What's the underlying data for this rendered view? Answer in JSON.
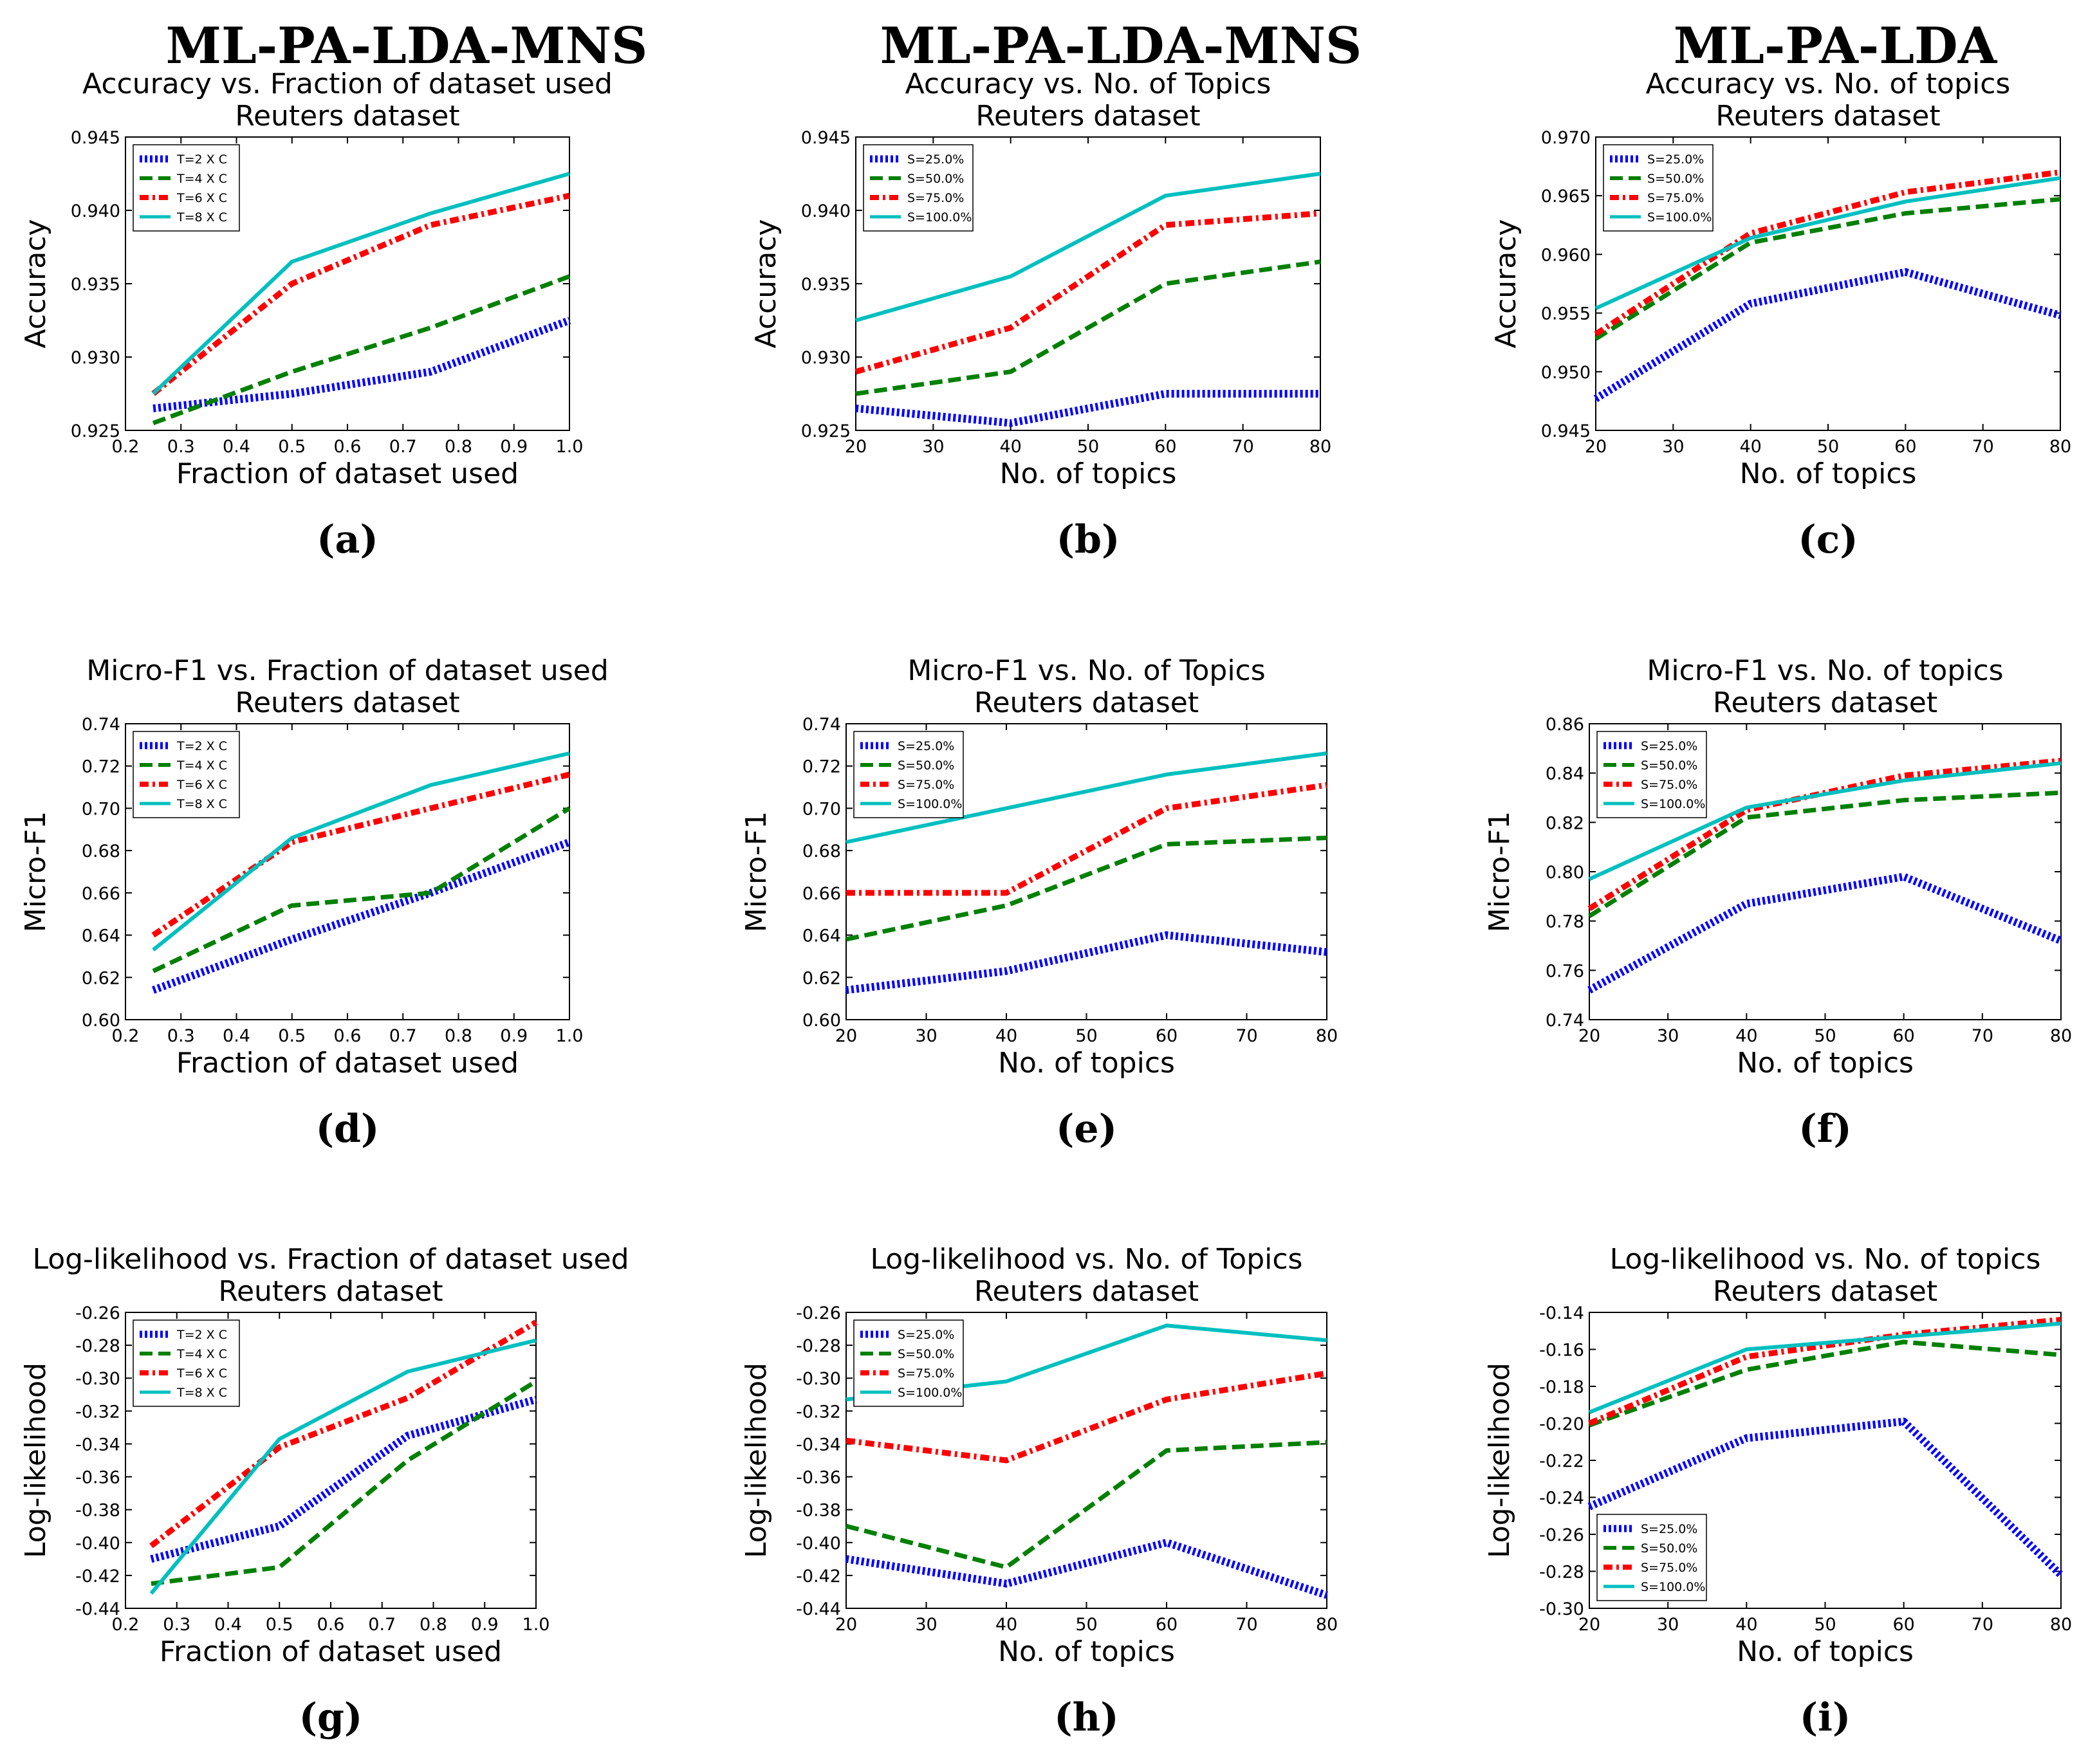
{
  "column_titles": [
    "ML-PA-LDA-MNS",
    "ML-PA-LDA-MNS",
    "ML-PA-LDA"
  ],
  "series_styles": [
    {
      "color": "#0000ff",
      "style": "dotted"
    },
    {
      "color": "#008000",
      "style": "dashed"
    },
    {
      "color": "#ff0000",
      "style": "dashdot"
    },
    {
      "color": "#00bfbf",
      "style": "solid"
    }
  ],
  "chart_data": [
    {
      "type": "line",
      "label": "(a)",
      "title": "Accuracy vs. Fraction of dataset used",
      "subtitle": "Reuters dataset",
      "xlabel": "Fraction of dataset used",
      "ylabel": "Accuracy",
      "xlim": [
        0.2,
        1.0
      ],
      "ylim": [
        0.925,
        0.945
      ],
      "xticks": [
        0.2,
        0.3,
        0.4,
        0.5,
        0.6,
        0.7,
        0.8,
        0.9,
        1.0
      ],
      "xtick_labels": [
        "0.2",
        "0.3",
        "0.4",
        "0.5",
        "0.6",
        "0.7",
        "0.8",
        "0.9",
        "1.0"
      ],
      "yticks": [
        0.925,
        0.93,
        0.935,
        0.94,
        0.945
      ],
      "ytick_labels": [
        "0.925",
        "0.930",
        "0.935",
        "0.940",
        "0.945"
      ],
      "legend_loc": "upper-left",
      "x": [
        0.25,
        0.5,
        0.75,
        1.0
      ],
      "series": [
        {
          "name": "T=2 X C",
          "values": [
            0.9265,
            0.9275,
            0.929,
            0.9325
          ]
        },
        {
          "name": "T=4 X C",
          "values": [
            0.9255,
            0.929,
            0.932,
            0.9355
          ]
        },
        {
          "name": "T=6 X C",
          "values": [
            0.9275,
            0.935,
            0.939,
            0.941
          ]
        },
        {
          "name": "T=8 X C",
          "values": [
            0.9275,
            0.9365,
            0.9398,
            0.9425
          ]
        }
      ]
    },
    {
      "type": "line",
      "label": "(b)",
      "title": "Accuracy vs. No. of Topics",
      "subtitle": "Reuters dataset",
      "xlabel": "No. of topics",
      "ylabel": "Accuracy",
      "xlim": [
        20,
        80
      ],
      "ylim": [
        0.925,
        0.945
      ],
      "xticks": [
        20,
        30,
        40,
        50,
        60,
        70,
        80
      ],
      "xtick_labels": [
        "20",
        "30",
        "40",
        "50",
        "60",
        "70",
        "80"
      ],
      "yticks": [
        0.925,
        0.93,
        0.935,
        0.94,
        0.945
      ],
      "ytick_labels": [
        "0.925",
        "0.930",
        "0.935",
        "0.940",
        "0.945"
      ],
      "legend_loc": "upper-left",
      "x": [
        20,
        40,
        60,
        80
      ],
      "series": [
        {
          "name": "S=25.0%",
          "values": [
            0.9265,
            0.9255,
            0.9275,
            0.9275
          ]
        },
        {
          "name": "S=50.0%",
          "values": [
            0.9275,
            0.929,
            0.935,
            0.9365
          ]
        },
        {
          "name": "S=75.0%",
          "values": [
            0.929,
            0.932,
            0.939,
            0.9398
          ]
        },
        {
          "name": "S=100.0%",
          "values": [
            0.9325,
            0.9355,
            0.941,
            0.9425
          ]
        }
      ]
    },
    {
      "type": "line",
      "label": "(c)",
      "title": "Accuracy vs. No. of topics",
      "subtitle": "Reuters dataset",
      "xlabel": "No. of topics",
      "ylabel": "Accuracy",
      "xlim": [
        20,
        80
      ],
      "ylim": [
        0.945,
        0.97
      ],
      "xticks": [
        20,
        30,
        40,
        50,
        60,
        70,
        80
      ],
      "xtick_labels": [
        "20",
        "30",
        "40",
        "50",
        "60",
        "70",
        "80"
      ],
      "yticks": [
        0.945,
        0.95,
        0.955,
        0.96,
        0.965,
        0.97
      ],
      "ytick_labels": [
        "0.945",
        "0.950",
        "0.955",
        "0.960",
        "0.965",
        "0.970"
      ],
      "legend_loc": "upper-left",
      "x": [
        20,
        40,
        60,
        80
      ],
      "series": [
        {
          "name": "S=25.0%",
          "values": [
            0.9477,
            0.9558,
            0.9585,
            0.9548
          ]
        },
        {
          "name": "S=50.0%",
          "values": [
            0.9528,
            0.961,
            0.9635,
            0.9647
          ]
        },
        {
          "name": "S=75.0%",
          "values": [
            0.9532,
            0.9618,
            0.9653,
            0.967
          ]
        },
        {
          "name": "S=100.0%",
          "values": [
            0.9554,
            0.9614,
            0.9645,
            0.9665
          ]
        }
      ]
    },
    {
      "type": "line",
      "label": "(d)",
      "title": "Micro-F1 vs. Fraction of dataset used",
      "subtitle": "Reuters dataset",
      "xlabel": "Fraction of dataset used",
      "ylabel": "Micro-F1",
      "xlim": [
        0.2,
        1.0
      ],
      "ylim": [
        0.6,
        0.74
      ],
      "xticks": [
        0.2,
        0.3,
        0.4,
        0.5,
        0.6,
        0.7,
        0.8,
        0.9,
        1.0
      ],
      "xtick_labels": [
        "0.2",
        "0.3",
        "0.4",
        "0.5",
        "0.6",
        "0.7",
        "0.8",
        "0.9",
        "1.0"
      ],
      "yticks": [
        0.6,
        0.62,
        0.64,
        0.66,
        0.68,
        0.7,
        0.72,
        0.74
      ],
      "ytick_labels": [
        "0.60",
        "0.62",
        "0.64",
        "0.66",
        "0.68",
        "0.70",
        "0.72",
        "0.74"
      ],
      "legend_loc": "upper-left",
      "x": [
        0.25,
        0.5,
        0.75,
        1.0
      ],
      "series": [
        {
          "name": "T=2 X C",
          "values": [
            0.614,
            0.638,
            0.66,
            0.684
          ]
        },
        {
          "name": "T=4 X C",
          "values": [
            0.623,
            0.654,
            0.66,
            0.7
          ]
        },
        {
          "name": "T=6 X C",
          "values": [
            0.64,
            0.684,
            0.7,
            0.716
          ]
        },
        {
          "name": "T=8 X C",
          "values": [
            0.633,
            0.686,
            0.711,
            0.726
          ]
        }
      ]
    },
    {
      "type": "line",
      "label": "(e)",
      "title": "Micro-F1 vs. No. of Topics",
      "subtitle": "Reuters dataset",
      "xlabel": "No. of topics",
      "ylabel": "Micro-F1",
      "xlim": [
        20,
        80
      ],
      "ylim": [
        0.6,
        0.74
      ],
      "xticks": [
        20,
        30,
        40,
        50,
        60,
        70,
        80
      ],
      "xtick_labels": [
        "20",
        "30",
        "40",
        "50",
        "60",
        "70",
        "80"
      ],
      "yticks": [
        0.6,
        0.62,
        0.64,
        0.66,
        0.68,
        0.7,
        0.72,
        0.74
      ],
      "ytick_labels": [
        "0.60",
        "0.62",
        "0.64",
        "0.66",
        "0.68",
        "0.70",
        "0.72",
        "0.74"
      ],
      "legend_loc": "upper-left",
      "x": [
        20,
        40,
        60,
        80
      ],
      "series": [
        {
          "name": "S=25.0%",
          "values": [
            0.614,
            0.623,
            0.64,
            0.632
          ]
        },
        {
          "name": "S=50.0%",
          "values": [
            0.638,
            0.654,
            0.683,
            0.686
          ]
        },
        {
          "name": "S=75.0%",
          "values": [
            0.66,
            0.66,
            0.7,
            0.711
          ]
        },
        {
          "name": "S=100.0%",
          "values": [
            0.684,
            0.7,
            0.716,
            0.726
          ]
        }
      ]
    },
    {
      "type": "line",
      "label": "(f)",
      "title": "Micro-F1 vs. No. of topics",
      "subtitle": "Reuters dataset",
      "xlabel": "No. of topics",
      "ylabel": "Micro-F1",
      "xlim": [
        20,
        80
      ],
      "ylim": [
        0.74,
        0.86
      ],
      "xticks": [
        20,
        30,
        40,
        50,
        60,
        70,
        80
      ],
      "xtick_labels": [
        "20",
        "30",
        "40",
        "50",
        "60",
        "70",
        "80"
      ],
      "yticks": [
        0.74,
        0.76,
        0.78,
        0.8,
        0.82,
        0.84,
        0.86
      ],
      "ytick_labels": [
        "0.74",
        "0.76",
        "0.78",
        "0.80",
        "0.82",
        "0.84",
        "0.86"
      ],
      "legend_loc": "upper-left",
      "x": [
        20,
        40,
        60,
        80
      ],
      "series": [
        {
          "name": "S=25.0%",
          "values": [
            0.752,
            0.787,
            0.798,
            0.772
          ]
        },
        {
          "name": "S=50.0%",
          "values": [
            0.782,
            0.822,
            0.829,
            0.832
          ]
        },
        {
          "name": "S=75.0%",
          "values": [
            0.785,
            0.825,
            0.839,
            0.845
          ]
        },
        {
          "name": "S=100.0%",
          "values": [
            0.797,
            0.826,
            0.837,
            0.844
          ]
        }
      ]
    },
    {
      "type": "line",
      "label": "(g)",
      "title": "Log-likelihood vs. Fraction of dataset used",
      "subtitle": "Reuters dataset",
      "xlabel": "Fraction of dataset used",
      "ylabel": "Log-likelihood",
      "xlim": [
        0.2,
        1.0
      ],
      "ylim": [
        -0.44,
        -0.26
      ],
      "xticks": [
        0.2,
        0.3,
        0.4,
        0.5,
        0.6,
        0.7,
        0.8,
        0.9,
        1.0
      ],
      "xtick_labels": [
        "0.2",
        "0.3",
        "0.4",
        "0.5",
        "0.6",
        "0.7",
        "0.8",
        "0.9",
        "1.0"
      ],
      "yticks": [
        -0.44,
        -0.42,
        -0.4,
        -0.38,
        -0.36,
        -0.34,
        -0.32,
        -0.3,
        -0.28,
        -0.26
      ],
      "ytick_labels": [
        "-0.44",
        "-0.42",
        "-0.40",
        "-0.38",
        "-0.36",
        "-0.34",
        "-0.32",
        "-0.30",
        "-0.28",
        "-0.26"
      ],
      "legend_loc": "upper-left",
      "x": [
        0.25,
        0.5,
        0.75,
        1.0
      ],
      "series": [
        {
          "name": "T=2 X C",
          "values": [
            -0.41,
            -0.39,
            -0.335,
            -0.313
          ]
        },
        {
          "name": "T=4 X C",
          "values": [
            -0.425,
            -0.415,
            -0.35,
            -0.302
          ]
        },
        {
          "name": "T=6 X C",
          "values": [
            -0.402,
            -0.342,
            -0.312,
            -0.266
          ]
        },
        {
          "name": "T=8 X C",
          "values": [
            -0.431,
            -0.337,
            -0.296,
            -0.277
          ]
        }
      ]
    },
    {
      "type": "line",
      "label": "(h)",
      "title": "Log-likelihood vs. No. of Topics",
      "subtitle": "Reuters dataset",
      "xlabel": "No. of topics",
      "ylabel": "Log-likelihood",
      "xlim": [
        20,
        80
      ],
      "ylim": [
        -0.44,
        -0.26
      ],
      "xticks": [
        20,
        30,
        40,
        50,
        60,
        70,
        80
      ],
      "xtick_labels": [
        "20",
        "30",
        "40",
        "50",
        "60",
        "70",
        "80"
      ],
      "yticks": [
        -0.44,
        -0.42,
        -0.4,
        -0.38,
        -0.36,
        -0.34,
        -0.32,
        -0.3,
        -0.28,
        -0.26
      ],
      "ytick_labels": [
        "-0.44",
        "-0.42",
        "-0.40",
        "-0.38",
        "-0.36",
        "-0.34",
        "-0.32",
        "-0.30",
        "-0.28",
        "-0.26"
      ],
      "legend_loc": "upper-left",
      "x": [
        20,
        40,
        60,
        80
      ],
      "series": [
        {
          "name": "S=25.0%",
          "values": [
            -0.41,
            -0.425,
            -0.4,
            -0.432
          ]
        },
        {
          "name": "S=50.0%",
          "values": [
            -0.39,
            -0.415,
            -0.344,
            -0.339
          ]
        },
        {
          "name": "S=75.0%",
          "values": [
            -0.338,
            -0.35,
            -0.313,
            -0.297
          ]
        },
        {
          "name": "S=100.0%",
          "values": [
            -0.313,
            -0.302,
            -0.268,
            -0.277
          ]
        }
      ]
    },
    {
      "type": "line",
      "label": "(i)",
      "title": "Log-likelihood vs. No. of topics",
      "subtitle": "Reuters dataset",
      "xlabel": "No. of topics",
      "ylabel": "Log-likelihood",
      "xlim": [
        20,
        80
      ],
      "ylim": [
        -0.3,
        -0.14
      ],
      "xticks": [
        20,
        30,
        40,
        50,
        60,
        70,
        80
      ],
      "xtick_labels": [
        "20",
        "30",
        "40",
        "50",
        "60",
        "70",
        "80"
      ],
      "yticks": [
        -0.3,
        -0.28,
        -0.26,
        -0.24,
        -0.22,
        -0.2,
        -0.18,
        -0.16,
        -0.14
      ],
      "ytick_labels": [
        "-0.30",
        "-0.28",
        "-0.26",
        "-0.24",
        "-0.22",
        "-0.20",
        "-0.18",
        "-0.16",
        "-0.14"
      ],
      "legend_loc": "lower-left",
      "x": [
        20,
        40,
        60,
        80
      ],
      "series": [
        {
          "name": "S=25.0%",
          "values": [
            -0.245,
            -0.208,
            -0.199,
            -0.282
          ]
        },
        {
          "name": "S=50.0%",
          "values": [
            -0.201,
            -0.171,
            -0.156,
            -0.163
          ]
        },
        {
          "name": "S=75.0%",
          "values": [
            -0.2,
            -0.164,
            -0.152,
            -0.144
          ]
        },
        {
          "name": "S=100.0%",
          "values": [
            -0.194,
            -0.16,
            -0.153,
            -0.146
          ]
        }
      ]
    }
  ]
}
